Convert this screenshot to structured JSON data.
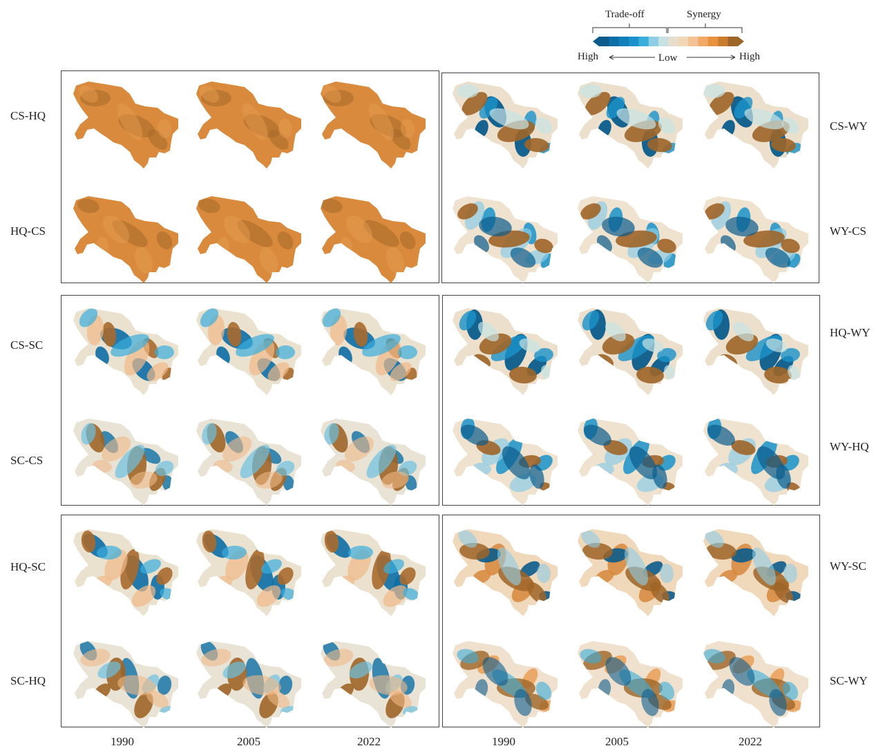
{
  "legend": {
    "tradeoff_label": "Trade-off",
    "synergy_label": "Synergy",
    "high_left": "High",
    "low": "Low",
    "high_right": "High",
    "tradeoff_colors": [
      "#0b5c8c",
      "#0d6fa5",
      "#127fb8",
      "#1a92c9",
      "#3aaedb",
      "#8dcde6",
      "#c8e2e4"
    ],
    "synergy_colors": [
      "#e8dccb",
      "#f2d7b6",
      "#f3c193",
      "#f1a968",
      "#e8913e",
      "#c97c2e",
      "#9e6528"
    ]
  },
  "row_labels_left": [
    "CS-HQ",
    "HQ-CS",
    "CS-SC",
    "SC-CS",
    "HQ-SC",
    "SC-HQ"
  ],
  "row_labels_right": [
    "CS-WY",
    "WY-CS",
    "HQ-WY",
    "WY-HQ",
    "WY-SC",
    "SC-WY"
  ],
  "years": [
    "1990",
    "2005",
    "2022",
    "1990",
    "2005",
    "2022"
  ],
  "maps": [
    {
      "pair": "CS-HQ",
      "style": "uniform",
      "years": [
        "1990",
        "2005",
        "2022"
      ]
    },
    {
      "pair": "HQ-CS",
      "style": "uniform",
      "years": [
        "1990",
        "2005",
        "2022"
      ]
    },
    {
      "pair": "CS-SC",
      "style": "mixed",
      "years": [
        "1990",
        "2005",
        "2022"
      ]
    },
    {
      "pair": "SC-CS",
      "style": "mixed-light",
      "years": [
        "1990",
        "2005",
        "2022"
      ]
    },
    {
      "pair": "HQ-SC",
      "style": "mixed",
      "years": [
        "1990",
        "2005",
        "2022"
      ]
    },
    {
      "pair": "SC-HQ",
      "style": "mixed-light",
      "years": [
        "1990",
        "2005",
        "2022"
      ]
    },
    {
      "pair": "CS-WY",
      "style": "tradeoff",
      "years": [
        "1990",
        "2005",
        "2022"
      ]
    },
    {
      "pair": "WY-CS",
      "style": "tradeoff-light",
      "years": [
        "1990",
        "2005",
        "2022"
      ]
    },
    {
      "pair": "HQ-WY",
      "style": "tradeoff",
      "years": [
        "1990",
        "2005",
        "2022"
      ]
    },
    {
      "pair": "WY-HQ",
      "style": "tradeoff-light",
      "years": [
        "1990",
        "2005",
        "2022"
      ]
    },
    {
      "pair": "WY-SC",
      "style": "synergy-mix",
      "years": [
        "1990",
        "2005",
        "2022"
      ]
    },
    {
      "pair": "SC-WY",
      "style": "synergy-light",
      "years": [
        "1990",
        "2005",
        "2022"
      ]
    }
  ]
}
